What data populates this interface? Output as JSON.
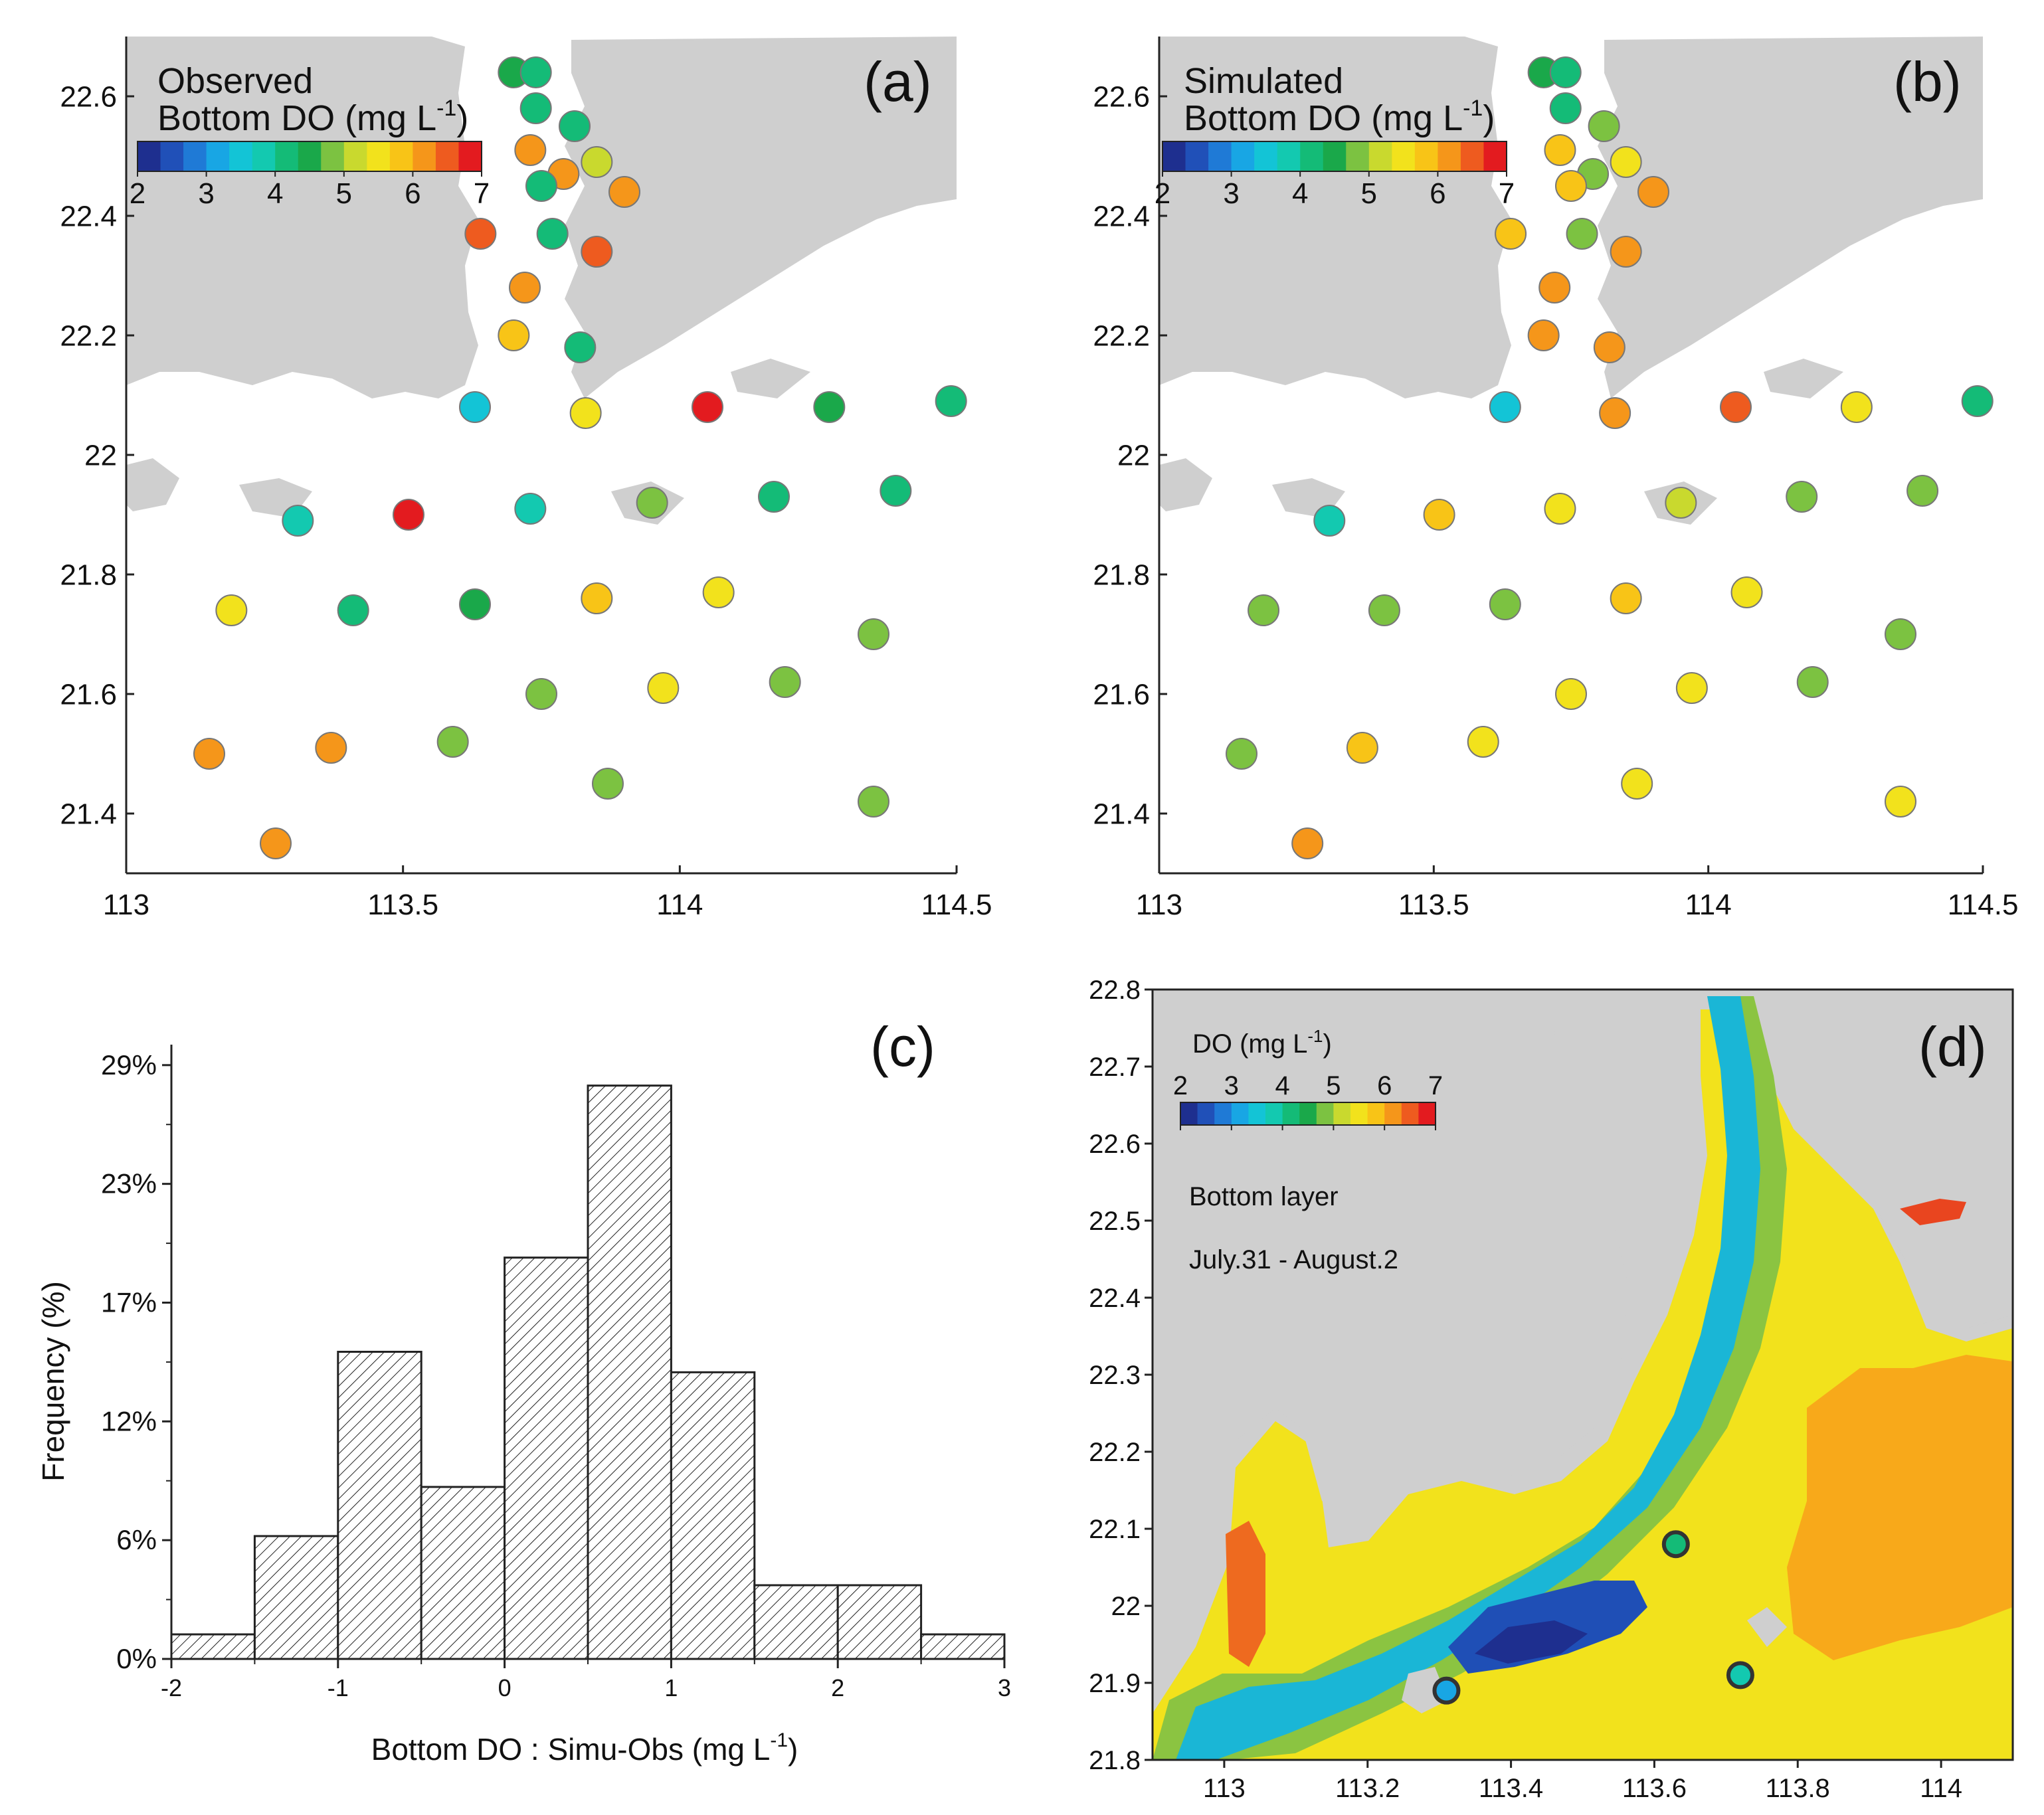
{
  "colormap": [
    "#1e2f8f",
    "#2050b8",
    "#1f7ad6",
    "#18a6e4",
    "#13c4d6",
    "#13c9b0",
    "#14bb77",
    "#1aa84a",
    "#7cc241",
    "#c9d92e",
    "#f2e21c",
    "#f8c417",
    "#f5961a",
    "#ee5b1f",
    "#e31b1f"
  ],
  "chart_data": [
    {
      "id": "a",
      "type": "scatter",
      "panel_label": "(a)",
      "title_line1": "Observed",
      "title_line2": "Bottom DO (mg L",
      "title_sup": "-1",
      "title_close": ")",
      "colorbar_ticks": [
        "2",
        "3",
        "4",
        "5",
        "6",
        "7"
      ],
      "vmin": 2,
      "vmax": 7,
      "xlim": [
        113,
        114.5
      ],
      "ylim": [
        21.3,
        22.7
      ],
      "xticks": [
        113,
        113.5,
        114,
        114.5
      ],
      "xtick_labels": [
        "113",
        "113.5",
        "114",
        "114.5"
      ],
      "yticks": [
        21.4,
        21.6,
        21.8,
        22.0,
        22.2,
        22.4,
        22.6
      ],
      "ytick_labels": [
        "21.4",
        "21.6",
        "21.8",
        "22",
        "22.2",
        "22.4",
        "22.6"
      ],
      "points": [
        [
          113.7,
          22.64,
          4.6
        ],
        [
          113.74,
          22.64,
          4.3
        ],
        [
          113.74,
          22.58,
          4.1
        ],
        [
          113.81,
          22.55,
          4.0
        ],
        [
          113.73,
          22.51,
          6.2
        ],
        [
          113.79,
          22.47,
          6.0
        ],
        [
          113.85,
          22.49,
          5.0
        ],
        [
          113.75,
          22.45,
          4.1
        ],
        [
          113.9,
          22.44,
          6.0
        ],
        [
          113.64,
          22.37,
          6.5
        ],
        [
          113.77,
          22.37,
          4.0
        ],
        [
          113.85,
          22.34,
          6.5
        ],
        [
          113.72,
          22.28,
          6.0
        ],
        [
          113.7,
          22.2,
          5.9
        ],
        [
          113.82,
          22.18,
          4.0
        ],
        [
          113.63,
          22.08,
          3.6
        ],
        [
          113.83,
          22.07,
          5.4
        ],
        [
          114.05,
          22.08,
          7.0
        ],
        [
          114.27,
          22.08,
          4.6
        ],
        [
          114.49,
          22.09,
          4.0
        ],
        [
          113.31,
          21.89,
          3.8
        ],
        [
          113.51,
          21.9,
          7.0
        ],
        [
          113.73,
          21.91,
          3.8
        ],
        [
          113.95,
          21.92,
          4.9
        ],
        [
          114.17,
          21.93,
          4.1
        ],
        [
          114.39,
          21.94,
          4.1
        ],
        [
          113.19,
          21.74,
          5.4
        ],
        [
          113.41,
          21.74,
          4.1
        ],
        [
          113.63,
          21.75,
          4.5
        ],
        [
          113.85,
          21.76,
          5.9
        ],
        [
          114.07,
          21.77,
          5.5
        ],
        [
          114.35,
          21.7,
          4.9
        ],
        [
          113.75,
          21.6,
          4.9
        ],
        [
          113.97,
          21.61,
          5.4
        ],
        [
          114.19,
          21.62,
          4.9
        ],
        [
          113.15,
          21.5,
          6.0
        ],
        [
          113.37,
          21.51,
          6.0
        ],
        [
          113.59,
          21.52,
          4.9
        ],
        [
          113.87,
          21.45,
          4.9
        ],
        [
          114.35,
          21.42,
          4.9
        ],
        [
          113.27,
          21.35,
          6.1
        ]
      ]
    },
    {
      "id": "b",
      "type": "scatter",
      "panel_label": "(b)",
      "title_line1": "Simulated",
      "title_line2": "Bottom DO (mg L",
      "title_sup": "-1",
      "title_close": ")",
      "colorbar_ticks": [
        "2",
        "3",
        "4",
        "5",
        "6",
        "7"
      ],
      "vmin": 2,
      "vmax": 7,
      "xlim": [
        113,
        114.5
      ],
      "ylim": [
        21.3,
        22.7
      ],
      "xticks": [
        113,
        113.5,
        114,
        114.5
      ],
      "xtick_labels": [
        "113",
        "113.5",
        "114",
        "114.5"
      ],
      "yticks": [
        21.4,
        21.6,
        21.8,
        22.0,
        22.2,
        22.4,
        22.6
      ],
      "ytick_labels": [
        "21.4",
        "21.6",
        "21.8",
        "22",
        "22.2",
        "22.4",
        "22.6"
      ],
      "points": [
        [
          113.7,
          22.64,
          4.6
        ],
        [
          113.74,
          22.64,
          4.3
        ],
        [
          113.74,
          22.58,
          4.1
        ],
        [
          113.81,
          22.55,
          4.9
        ],
        [
          113.73,
          22.51,
          5.9
        ],
        [
          113.79,
          22.47,
          4.9
        ],
        [
          113.85,
          22.49,
          5.4
        ],
        [
          113.75,
          22.45,
          5.9
        ],
        [
          113.9,
          22.44,
          6.0
        ],
        [
          113.64,
          22.37,
          5.9
        ],
        [
          113.77,
          22.37,
          4.9
        ],
        [
          113.85,
          22.34,
          6.0
        ],
        [
          113.72,
          22.28,
          6.1
        ],
        [
          113.7,
          22.2,
          6.1
        ],
        [
          113.82,
          22.18,
          6.1
        ],
        [
          113.63,
          22.08,
          3.6
        ],
        [
          113.83,
          22.07,
          6.1
        ],
        [
          114.05,
          22.08,
          6.5
        ],
        [
          114.27,
          22.08,
          5.4
        ],
        [
          114.49,
          22.09,
          4.0
        ],
        [
          113.31,
          21.89,
          3.9
        ],
        [
          113.51,
          21.9,
          5.9
        ],
        [
          113.73,
          21.91,
          5.4
        ],
        [
          113.95,
          21.92,
          5.2
        ],
        [
          114.17,
          21.93,
          4.9
        ],
        [
          114.39,
          21.94,
          4.9
        ],
        [
          113.19,
          21.74,
          4.8
        ],
        [
          113.41,
          21.74,
          4.9
        ],
        [
          113.63,
          21.75,
          4.9
        ],
        [
          113.85,
          21.76,
          5.9
        ],
        [
          114.07,
          21.77,
          5.4
        ],
        [
          114.35,
          21.7,
          4.8
        ],
        [
          113.75,
          21.6,
          5.4
        ],
        [
          113.97,
          21.61,
          5.4
        ],
        [
          114.19,
          21.62,
          4.9
        ],
        [
          113.15,
          21.5,
          4.9
        ],
        [
          113.37,
          21.51,
          5.9
        ],
        [
          113.59,
          21.52,
          5.4
        ],
        [
          113.87,
          21.45,
          5.4
        ],
        [
          114.35,
          21.42,
          5.4
        ],
        [
          113.27,
          21.35,
          6.1
        ]
      ]
    },
    {
      "id": "c",
      "type": "bar",
      "panel_label": "(c)",
      "xlabel": "Bottom DO : Simu-Obs (mg L",
      "xlabel_sup": "-1",
      "xlabel_close": ")",
      "ylabel": "Frequency (%)",
      "bin_edges": [
        -2,
        -1.5,
        -1,
        -0.5,
        0,
        0.5,
        1,
        1.5,
        2,
        2.5,
        3
      ],
      "values": [
        1.2,
        6,
        15,
        8.4,
        19.6,
        28,
        14,
        3.6,
        3.6,
        1.2
      ],
      "ylim": [
        0,
        30
      ],
      "xticks": [
        -2,
        -1,
        0,
        1,
        2,
        3
      ],
      "xtick_labels": [
        "-2",
        "-1",
        "0",
        "1",
        "2",
        "3"
      ],
      "yticks": [
        0,
        5.8,
        11.6,
        17.4,
        23.2,
        29
      ],
      "ytick_labels": [
        "0%",
        "6%",
        "12%",
        "17%",
        "23%",
        "29%"
      ]
    },
    {
      "id": "d",
      "type": "heatmap",
      "panel_label": "(d)",
      "colorbar_title": "DO (mg L",
      "colorbar_sup": "-1",
      "colorbar_close": ")",
      "colorbar_ticks": [
        "2",
        "3",
        "4",
        "5",
        "6",
        "7"
      ],
      "annotation_layer": "Bottom layer",
      "annotation_period": "July.31 - August.2",
      "xlim": [
        112.9,
        114.1
      ],
      "ylim": [
        21.8,
        22.8
      ],
      "xticks": [
        113,
        113.2,
        113.4,
        113.6,
        113.8,
        114
      ],
      "xtick_labels": [
        "113",
        "113.2",
        "113.4",
        "113.6",
        "113.8",
        "114"
      ],
      "yticks": [
        21.8,
        21.9,
        22.0,
        22.1,
        22.2,
        22.3,
        22.4,
        22.5,
        22.6,
        22.7,
        22.8
      ],
      "ytick_labels": [
        "21.8",
        "21.9",
        "22",
        "22.1",
        "22.2",
        "22.3",
        "22.4",
        "22.5",
        "22.6",
        "22.7",
        "22.8"
      ],
      "stations": [
        [
          113.31,
          21.89,
          3.2
        ],
        [
          113.63,
          22.08,
          4.1
        ],
        [
          113.72,
          21.91,
          3.8
        ]
      ]
    }
  ]
}
